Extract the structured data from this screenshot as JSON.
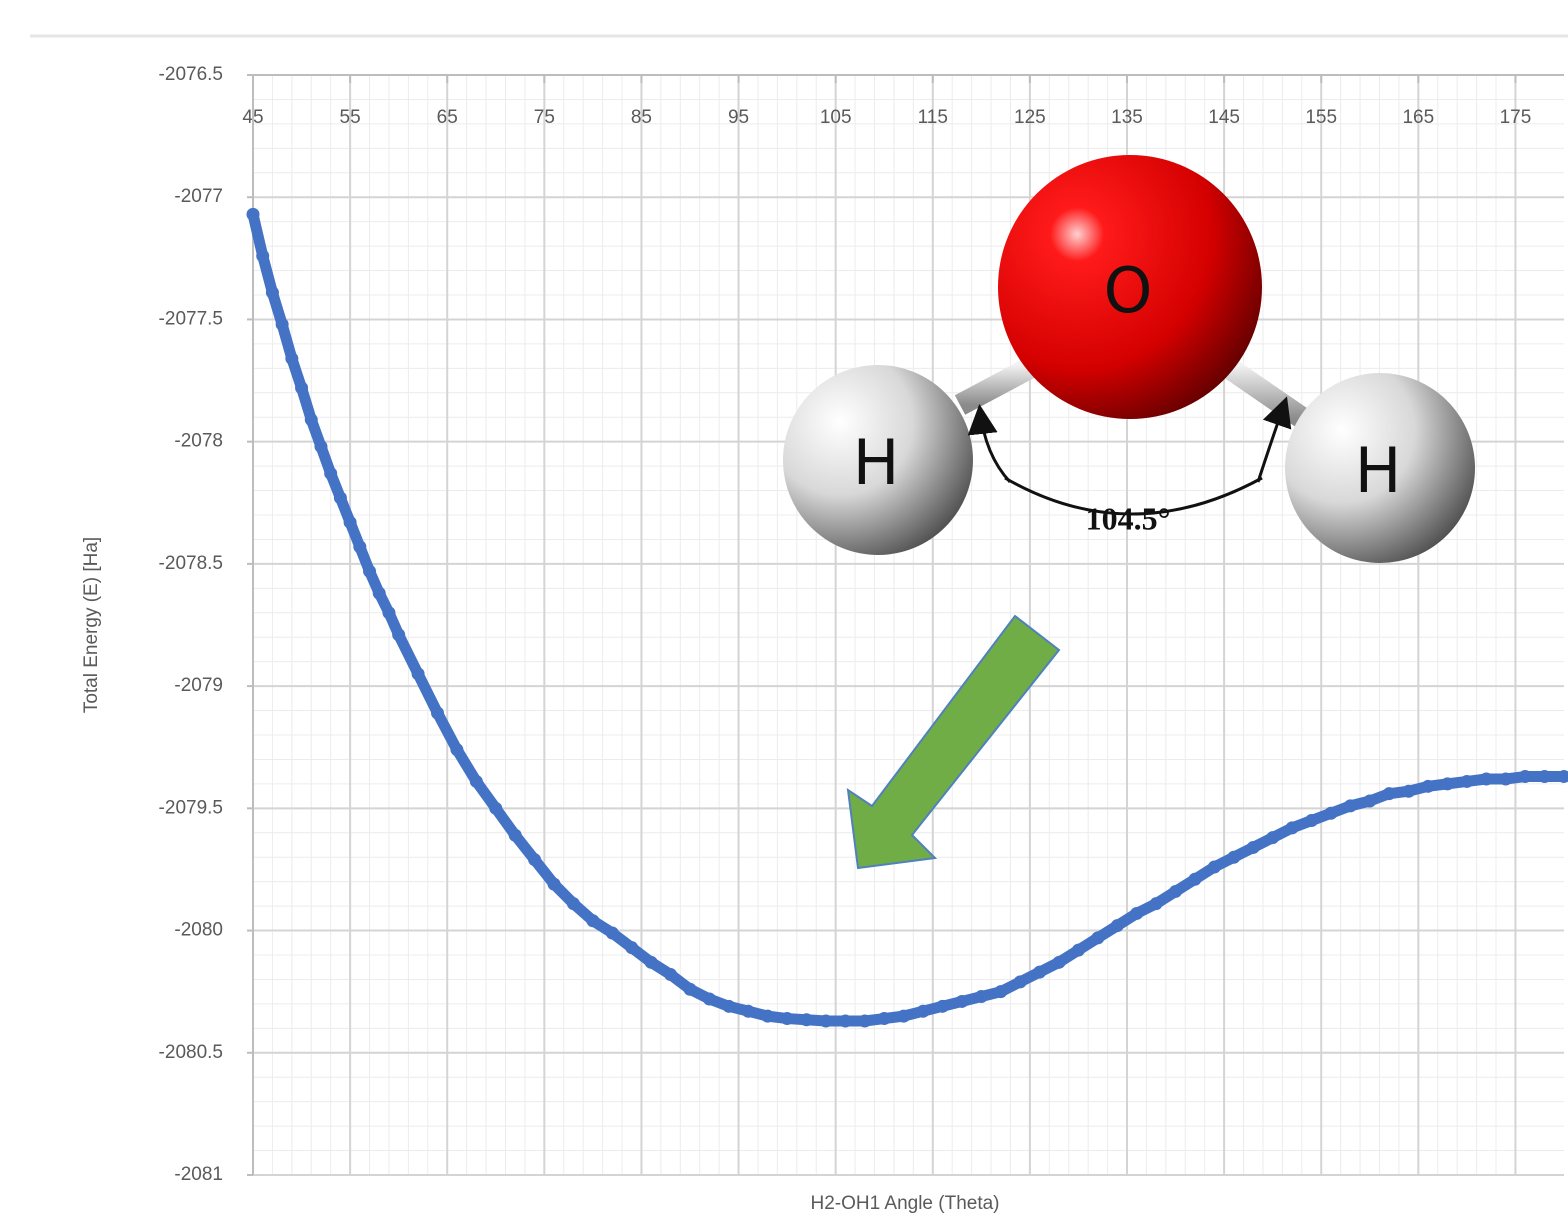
{
  "chart_data": {
    "type": "line",
    "x_label": "H2-OH1 Angle (Theta)",
    "y_label": "Total Energy (E) [Ha]",
    "molecule": {
      "atoms": [
        "O",
        "H",
        "H"
      ],
      "angle_label": "104.5°"
    },
    "xlim": [
      45,
      180
    ],
    "ylim": [
      -2081,
      -2076.5
    ],
    "xticks": [
      45,
      55,
      65,
      75,
      85,
      95,
      105,
      115,
      125,
      135,
      145,
      155,
      165,
      175
    ],
    "yticks": [
      -2076.5,
      -2077,
      -2077.5,
      -2078,
      -2078.5,
      -2079,
      -2079.5,
      -2080,
      -2080.5,
      -2081
    ],
    "grid": true,
    "minor_grid": true,
    "x_axis_position": "top",
    "series": [
      {
        "color": "#4472c4",
        "x": [
          45,
          46,
          47,
          48,
          49,
          50,
          51,
          52,
          53,
          54,
          55,
          56,
          57,
          58,
          59,
          60,
          62,
          64,
          66,
          68,
          70,
          72,
          74,
          76,
          78,
          80,
          82,
          84,
          86,
          88,
          90,
          92,
          94,
          96,
          98,
          100,
          102,
          104,
          106,
          108,
          110,
          112,
          114,
          116,
          118,
          120,
          122,
          124,
          126,
          128,
          130,
          132,
          134,
          136,
          138,
          140,
          142,
          144,
          146,
          148,
          150,
          152,
          154,
          156,
          158,
          160,
          162,
          164,
          166,
          168,
          170,
          172,
          174,
          176,
          178,
          180
        ],
        "values": [
          -2077.07,
          -2077.24,
          -2077.39,
          -2077.52,
          -2077.66,
          -2077.78,
          -2077.91,
          -2078.02,
          -2078.13,
          -2078.23,
          -2078.33,
          -2078.43,
          -2078.53,
          -2078.62,
          -2078.7,
          -2078.79,
          -2078.95,
          -2079.11,
          -2079.26,
          -2079.39,
          -2079.5,
          -2079.61,
          -2079.71,
          -2079.81,
          -2079.89,
          -2079.96,
          -2080.01,
          -2080.07,
          -2080.13,
          -2080.18,
          -2080.24,
          -2080.28,
          -2080.31,
          -2080.33,
          -2080.35,
          -2080.36,
          -2080.365,
          -2080.37,
          -2080.37,
          -2080.37,
          -2080.36,
          -2080.35,
          -2080.33,
          -2080.31,
          -2080.29,
          -2080.27,
          -2080.25,
          -2080.21,
          -2080.17,
          -2080.13,
          -2080.08,
          -2080.03,
          -2079.98,
          -2079.93,
          -2079.89,
          -2079.84,
          -2079.79,
          -2079.74,
          -2079.7,
          -2079.66,
          -2079.62,
          -2079.58,
          -2079.55,
          -2079.52,
          -2079.49,
          -2079.47,
          -2079.44,
          -2079.43,
          -2079.41,
          -2079.4,
          -2079.39,
          -2079.38,
          -2079.38,
          -2079.37,
          -2079.37,
          -2079.37
        ]
      }
    ]
  }
}
